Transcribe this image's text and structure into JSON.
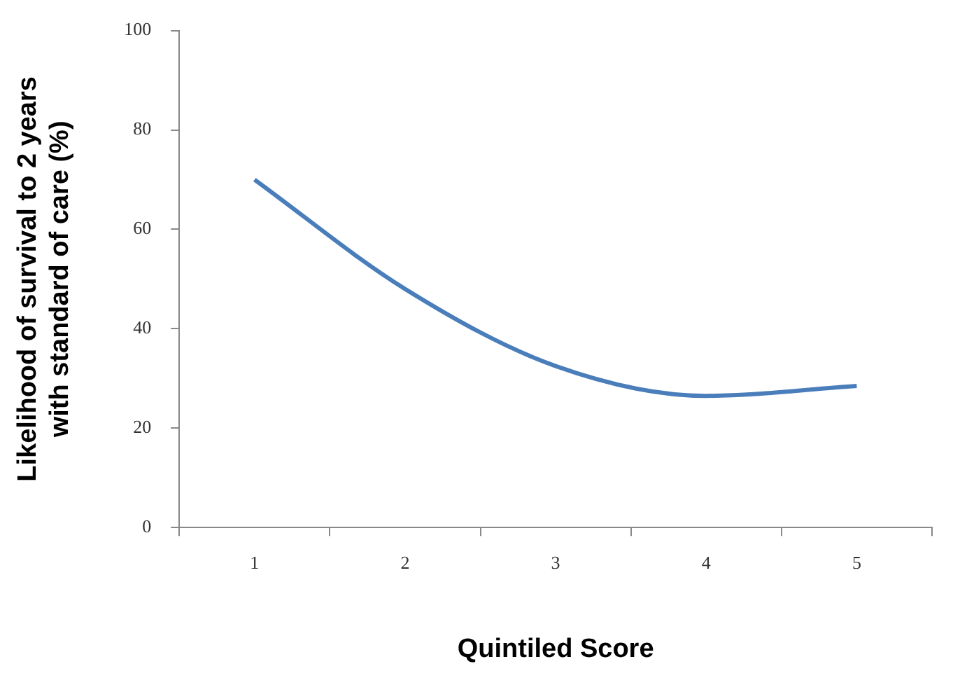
{
  "chart_data": {
    "type": "line",
    "xlabel": "Quintiled Score",
    "ylabel": "Likelihood of survival to 2 years with standard of care (%)",
    "categories": [
      "1",
      "2",
      "3",
      "4",
      "5"
    ],
    "series": [
      {
        "color": "#4a7ebb",
        "values": [
          70,
          48,
          32.5,
          26.5,
          28.5
        ]
      }
    ],
    "ylim": [
      0,
      100
    ],
    "yticks": [
      0,
      20,
      40,
      60,
      80,
      100
    ],
    "grid": false,
    "legend": false,
    "marker": "none",
    "line_style": "solid"
  }
}
